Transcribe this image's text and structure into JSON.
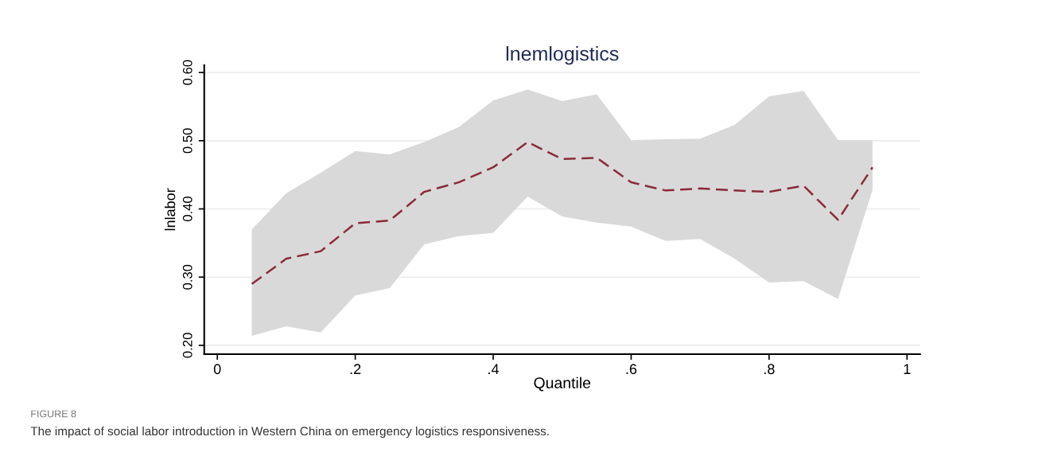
{
  "chart_data": {
    "type": "line",
    "title": "lnemlogistics",
    "xlabel": "Quantile",
    "ylabel": "lnlabor",
    "x": [
      0.05,
      0.1,
      0.15,
      0.2,
      0.25,
      0.3,
      0.35,
      0.4,
      0.45,
      0.5,
      0.55,
      0.6,
      0.65,
      0.7,
      0.75,
      0.8,
      0.85,
      0.9,
      0.95
    ],
    "series": [
      {
        "color": "#8b2a3a",
        "line_style": "dashed",
        "values": [
          0.29,
          0.327,
          0.338,
          0.379,
          0.383,
          0.425,
          0.439,
          0.461,
          0.498,
          0.473,
          0.475,
          0.439,
          0.427,
          0.43,
          0.427,
          0.425,
          0.434,
          0.384,
          0.461
        ],
        "lower": [
          0.214,
          0.228,
          0.219,
          0.273,
          0.284,
          0.348,
          0.36,
          0.365,
          0.418,
          0.389,
          0.38,
          0.374,
          0.353,
          0.356,
          0.327,
          0.292,
          0.294,
          0.268,
          0.428
        ],
        "upper": [
          0.37,
          0.423,
          0.453,
          0.485,
          0.48,
          0.498,
          0.52,
          0.559,
          0.575,
          0.558,
          0.568,
          0.501,
          0.502,
          0.503,
          0.523,
          0.565,
          0.573,
          0.501,
          0.501
        ]
      }
    ],
    "xlim": [
      -0.019,
      1.019
    ],
    "ylim": [
      0.187,
      0.611
    ],
    "xticks": [
      0,
      {
        "value": 0.2,
        "label": ".2"
      },
      {
        "value": 0.4,
        "label": ".4"
      },
      {
        "value": 0.6,
        "label": ".6"
      },
      {
        "value": 0.8,
        "label": ".8"
      },
      1
    ],
    "yticks": [
      {
        "value": 0.2,
        "label": "0.20"
      },
      {
        "value": 0.3,
        "label": "0.30"
      },
      {
        "value": 0.4,
        "label": "0.40"
      },
      {
        "value": 0.5,
        "label": "0.50"
      },
      {
        "value": 0.6,
        "label": "0.60"
      }
    ],
    "grid": "y",
    "marker": "none",
    "annotations": [
      "FIGURE 8",
      "The impact of social labor introduction in Western China on emergency logistics responsiveness."
    ]
  }
}
